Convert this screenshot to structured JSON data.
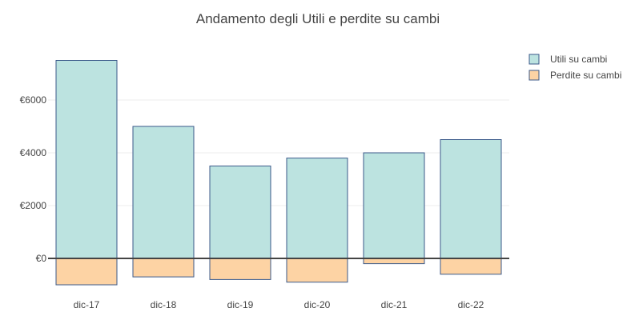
{
  "chart_data": {
    "type": "bar",
    "title": "Andamento degli Utili e perdite su cambi",
    "xlabel": "",
    "ylabel": "",
    "categories": [
      "dic-17",
      "dic-18",
      "dic-19",
      "dic-20",
      "dic-21",
      "dic-22"
    ],
    "series": [
      {
        "name": "Utili su cambi",
        "values": [
          7500,
          5000,
          3500,
          3800,
          4000,
          4500
        ],
        "color": "#bce3e0",
        "stroke": "#3b5a8a"
      },
      {
        "name": "Perdite su cambi",
        "values": [
          -1000,
          -700,
          -800,
          -900,
          -200,
          -600
        ],
        "color": "#fdd3a4",
        "stroke": "#3b5a8a"
      }
    ],
    "barmode": "relative",
    "y_ticks": [
      0,
      2000,
      4000,
      6000
    ],
    "y_tick_labels": [
      "€0",
      "€2000",
      "€4000",
      "€6000"
    ],
    "ylim": [
      -1050,
      7700
    ],
    "grid": true,
    "legend_position": "top-right"
  }
}
